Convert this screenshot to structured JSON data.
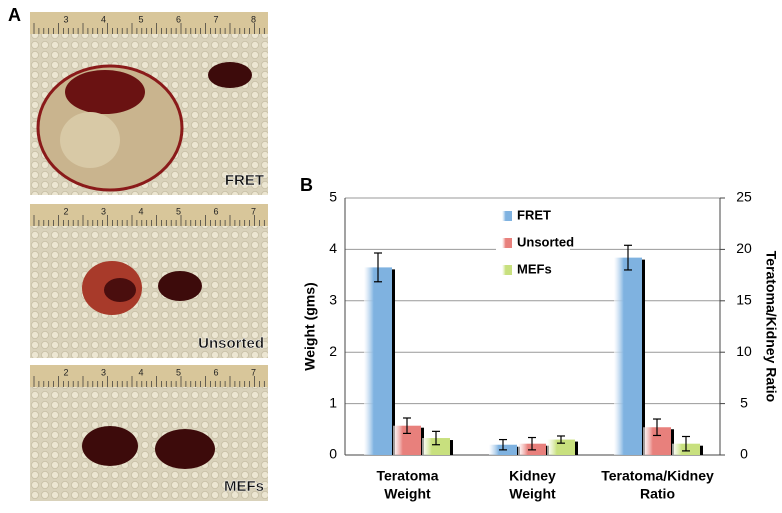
{
  "panel_labels": [
    "A",
    "B"
  ],
  "photos": [
    {
      "label": "FRET",
      "ruler": [
        "3",
        "4",
        "5",
        "6",
        "7",
        "8"
      ]
    },
    {
      "label": "Unsorted",
      "ruler": [
        "2",
        "3",
        "4",
        "5",
        "6",
        "7"
      ]
    },
    {
      "label": "MEFs",
      "ruler": [
        "2",
        "3",
        "4",
        "5",
        "6",
        "7"
      ]
    }
  ],
  "chart_data": {
    "type": "bar",
    "y_label": "Weight (gms)",
    "y2_label": "Teratoma/Kidney Ratio",
    "categories": [
      [
        "Teratoma",
        "Weight"
      ],
      [
        "Kidney",
        "Weight"
      ],
      [
        "Teratoma/Kidney",
        "Ratio"
      ]
    ],
    "category_axis": [
      "y",
      "y",
      "y2"
    ],
    "series": [
      {
        "name": "FRET",
        "color": "#7fb2e0",
        "values": [
          3.65,
          0.2,
          19.2
        ],
        "errors": [
          0.28,
          0.1,
          1.2
        ]
      },
      {
        "name": "Unsorted",
        "color": "#e8807c",
        "values": [
          0.57,
          0.22,
          2.7
        ],
        "errors": [
          0.15,
          0.12,
          0.8
        ]
      },
      {
        "name": "MEFs",
        "color": "#c8e07e",
        "values": [
          0.33,
          0.3,
          1.1
        ],
        "errors": [
          0.13,
          0.07,
          0.7
        ]
      }
    ],
    "ylim": [
      0,
      5
    ],
    "yticks": [
      0,
      1,
      2,
      3,
      4,
      5
    ],
    "y2lim": [
      0,
      25
    ],
    "y2ticks": [
      0,
      5,
      10,
      15,
      20,
      25
    ],
    "grid": true,
    "legend": "top"
  }
}
